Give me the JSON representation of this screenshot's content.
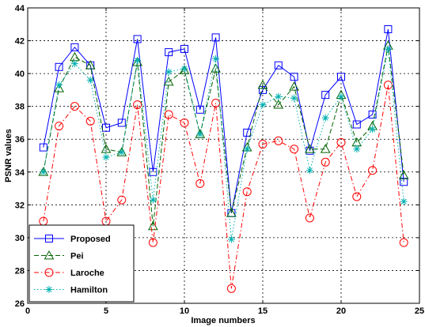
{
  "chart_data": {
    "type": "line",
    "title": "",
    "xlabel": "Image numbers",
    "ylabel": "PSNR values",
    "xlim": [
      0,
      25
    ],
    "ylim": [
      26,
      44
    ],
    "xticks": [
      0,
      5,
      10,
      15,
      20,
      25
    ],
    "yticks": [
      26,
      28,
      30,
      32,
      34,
      36,
      38,
      40,
      42,
      44
    ],
    "grid": true,
    "legend_position": "bottom-left",
    "x": [
      1,
      2,
      3,
      4,
      5,
      6,
      7,
      8,
      9,
      10,
      11,
      12,
      13,
      14,
      15,
      16,
      17,
      18,
      19,
      20,
      21,
      22,
      23,
      24
    ],
    "series": [
      {
        "name": "Proposed",
        "color": "#0000ff",
        "line_style": "solid",
        "marker": "square",
        "values": [
          35.5,
          40.4,
          41.6,
          40.5,
          36.7,
          37.0,
          42.1,
          34.0,
          41.3,
          41.5,
          37.8,
          42.2,
          31.5,
          36.4,
          39.0,
          40.5,
          39.8,
          35.3,
          38.7,
          39.8,
          36.9,
          37.5,
          42.7,
          33.4
        ]
      },
      {
        "name": "Pei",
        "color": "#006400",
        "line_style": "dashed",
        "marker": "triangle",
        "values": [
          34.0,
          39.1,
          41.0,
          40.5,
          35.4,
          35.2,
          40.7,
          30.7,
          39.5,
          40.2,
          36.3,
          40.3,
          31.5,
          35.5,
          39.3,
          38.1,
          39.2,
          35.4,
          35.4,
          38.7,
          35.8,
          36.8,
          41.7,
          33.8
        ]
      },
      {
        "name": "Laroche",
        "color": "#ff0000",
        "line_style": "dashdot",
        "marker": "circle",
        "values": [
          31.0,
          36.8,
          38.0,
          37.1,
          31.0,
          32.3,
          38.1,
          29.7,
          37.5,
          37.0,
          33.3,
          38.2,
          26.9,
          32.8,
          35.7,
          35.9,
          35.4,
          31.2,
          34.6,
          35.8,
          32.5,
          34.1,
          39.3,
          29.7
        ]
      },
      {
        "name": "Hamilton",
        "color": "#00b0b0",
        "line_style": "dotted",
        "marker": "asterisk",
        "values": [
          34.0,
          39.3,
          40.6,
          39.6,
          34.9,
          35.2,
          40.8,
          32.3,
          40.1,
          40.3,
          36.3,
          40.9,
          29.9,
          35.4,
          38.1,
          38.6,
          38.5,
          34.1,
          37.3,
          38.6,
          35.4,
          36.6,
          41.5,
          32.2
        ]
      }
    ]
  }
}
